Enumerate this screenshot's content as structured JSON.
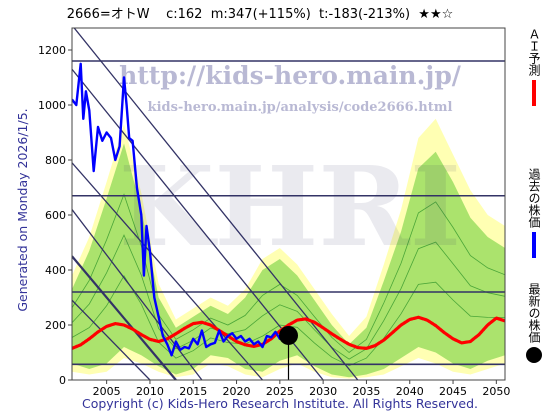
{
  "header": {
    "title": "2666=オトW    c:162  m:347(+115%)  t:-183(-213%)  ★★☆"
  },
  "side_label": "Generated on Monday 2026/1/5.",
  "footer": "Copyright (c) Kids-Hero Research Institute. All Rights Reserved.",
  "watermark": {
    "url_main": "http://kids-hero.main.jp/",
    "url_sub": "kids-hero.main.jp/analysis/code2666.html",
    "logo": "KHRI"
  },
  "legend": {
    "items": [
      {
        "label": "ＡＩ予測",
        "color": "#ff0000",
        "mark": "line"
      },
      {
        "label": "過去の株価",
        "color": "#0000ff",
        "mark": "line"
      },
      {
        "label": "最新の株価",
        "color": "#000000",
        "mark": "dot"
      }
    ]
  },
  "colors": {
    "price": "#0000ff",
    "forecast": "#ff0000",
    "band_outer": "#ffff99",
    "band_inner": "#66cc33",
    "trend": "#333366"
  },
  "chart_data": {
    "type": "line",
    "xlim": [
      2001,
      2051
    ],
    "ylim": [
      0,
      1280
    ],
    "x_ticks": [
      2005,
      2010,
      2015,
      2020,
      2025,
      2030,
      2035,
      2040,
      2045,
      2050
    ],
    "y_ticks": [
      0,
      200,
      400,
      600,
      800,
      1000,
      1200
    ],
    "grid": false,
    "legend_position": "right",
    "series": [
      {
        "name": "過去の株価",
        "x": [
          2001,
          2001.5,
          2002,
          2002.3,
          2002.6,
          2003,
          2003.5,
          2004,
          2004.5,
          2005,
          2005.5,
          2006,
          2006.5,
          2007,
          2007.3,
          2007.6,
          2008,
          2008.5,
          2009,
          2009.3,
          2009.6,
          2010,
          2010.5,
          2011,
          2011.5,
          2012,
          2012.5,
          2013,
          2013.5,
          2014,
          2014.5,
          2015,
          2015.5,
          2016,
          2016.5,
          2017,
          2017.5,
          2018,
          2018.5,
          2019,
          2019.5,
          2020,
          2020.5,
          2021,
          2021.5,
          2022,
          2022.5,
          2023,
          2023.5,
          2024,
          2024.5,
          2025,
          2025.5
        ],
        "y": [
          1020,
          1000,
          1150,
          950,
          1050,
          980,
          760,
          920,
          870,
          900,
          880,
          800,
          850,
          1100,
          1000,
          880,
          870,
          700,
          600,
          380,
          560,
          470,
          300,
          230,
          160,
          130,
          90,
          140,
          110,
          120,
          115,
          150,
          130,
          180,
          120,
          130,
          135,
          180,
          140,
          160,
          170,
          150,
          160,
          140,
          150,
          130,
          140,
          120,
          160,
          155,
          175,
          150,
          162
        ]
      },
      {
        "name": "ＡＩ予測",
        "x": [
          2001,
          2002,
          2003,
          2004,
          2005,
          2006,
          2007,
          2008,
          2009,
          2010,
          2011,
          2012,
          2013,
          2014,
          2015,
          2016,
          2017,
          2018,
          2019,
          2020,
          2021,
          2022,
          2023,
          2024,
          2025,
          2026,
          2027,
          2028,
          2029,
          2030,
          2031,
          2032,
          2033,
          2034,
          2035,
          2036,
          2037,
          2038,
          2039,
          2040,
          2041,
          2042,
          2043,
          2044,
          2045,
          2046,
          2047,
          2048,
          2049,
          2050,
          2051
        ],
        "y": [
          115,
          128,
          150,
          175,
          195,
          205,
          200,
          185,
          165,
          148,
          140,
          150,
          168,
          188,
          205,
          210,
          200,
          180,
          160,
          140,
          128,
          122,
          130,
          150,
          178,
          200,
          218,
          222,
          210,
          190,
          168,
          148,
          130,
          118,
          115,
          125,
          145,
          172,
          200,
          220,
          228,
          218,
          198,
          172,
          150,
          135,
          140,
          165,
          200,
          225,
          215
        ]
      },
      {
        "name": "最新の株価",
        "x": [
          2026
        ],
        "y": [
          162
        ]
      }
    ],
    "hlines": [
      1160,
      670,
      320,
      57
    ],
    "trendlines": [
      {
        "from": [
          2001,
          1290
        ],
        "to": [
          2034,
          0
        ]
      },
      {
        "from": [
          2001,
          1130
        ],
        "to": [
          2030,
          0
        ]
      },
      {
        "from": [
          2001,
          790
        ],
        "to": [
          2023,
          0
        ]
      },
      {
        "from": [
          2001,
          620
        ],
        "to": [
          2016,
          0
        ]
      },
      {
        "from": [
          2001,
          450
        ],
        "to": [
          2013,
          0
        ]
      },
      {
        "from": [
          2001,
          290
        ],
        "to": [
          2010,
          0
        ]
      }
    ],
    "band_outer": {
      "x": [
        2001,
        2003,
        2005,
        2007,
        2009,
        2011,
        2013,
        2015,
        2017,
        2019,
        2021,
        2023,
        2025,
        2027,
        2029,
        2031,
        2033,
        2035,
        2037,
        2039,
        2041,
        2043,
        2045,
        2047,
        2049,
        2051
      ],
      "upper": [
        380,
        520,
        720,
        930,
        680,
        350,
        220,
        260,
        300,
        270,
        330,
        440,
        480,
        420,
        330,
        240,
        160,
        230,
        420,
        620,
        880,
        950,
        820,
        690,
        600,
        560
      ],
      "lower": [
        30,
        20,
        30,
        80,
        60,
        30,
        10,
        20,
        60,
        50,
        20,
        10,
        40,
        60,
        30,
        10,
        5,
        10,
        20,
        50,
        80,
        60,
        30,
        20,
        40,
        60
      ]
    },
    "band_inner": {
      "x": [
        2001,
        2003,
        2005,
        2007,
        2009,
        2011,
        2013,
        2015,
        2017,
        2019,
        2021,
        2023,
        2025,
        2027,
        2029,
        2031,
        2033,
        2035,
        2037,
        2039,
        2041,
        2043,
        2045,
        2047,
        2049,
        2051
      ],
      "upper": [
        330,
        470,
        660,
        860,
        620,
        300,
        190,
        230,
        270,
        240,
        300,
        400,
        440,
        380,
        290,
        200,
        130,
        190,
        360,
        540,
        770,
        830,
        720,
        590,
        520,
        480
      ],
      "lower": [
        60,
        40,
        60,
        120,
        90,
        50,
        20,
        40,
        90,
        80,
        40,
        30,
        70,
        90,
        50,
        20,
        10,
        20,
        40,
        80,
        120,
        100,
        60,
        40,
        70,
        90
      ]
    }
  }
}
